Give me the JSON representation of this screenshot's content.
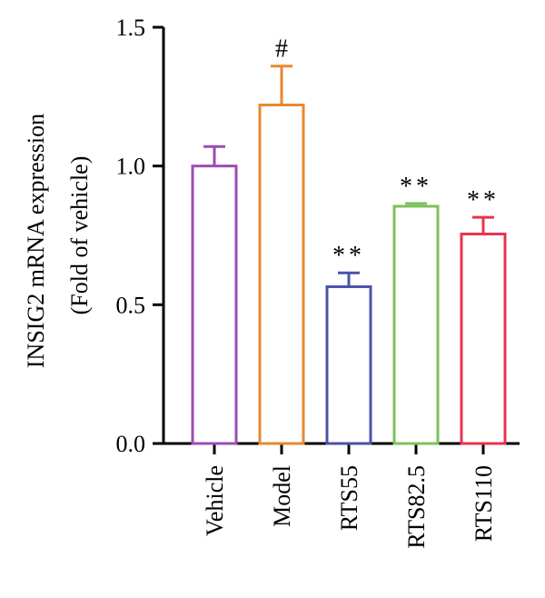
{
  "chart_data": {
    "type": "bar",
    "ylabel_line1": "INSIG2 mRNA expression",
    "ylabel_line2": "(Fold of vehicle)",
    "ylim": [
      0,
      1.5
    ],
    "yticks": [
      "0.0",
      "0.5",
      "1.0",
      "1.5"
    ],
    "ytick_values": [
      0,
      0.5,
      1.0,
      1.5
    ],
    "categories": [
      "Vehicle",
      "Model",
      "RTS55",
      "RTS82.5",
      "RTS110"
    ],
    "values": [
      1.0,
      1.22,
      0.565,
      0.855,
      0.755
    ],
    "errors": [
      0.07,
      0.14,
      0.05,
      0.01,
      0.06
    ],
    "annotations": [
      "",
      "#",
      "**",
      "**",
      "**"
    ],
    "colors": [
      "#9b4db5",
      "#e8892f",
      "#4a53a8",
      "#7cc35c",
      "#e8334f"
    ],
    "grid": false
  }
}
